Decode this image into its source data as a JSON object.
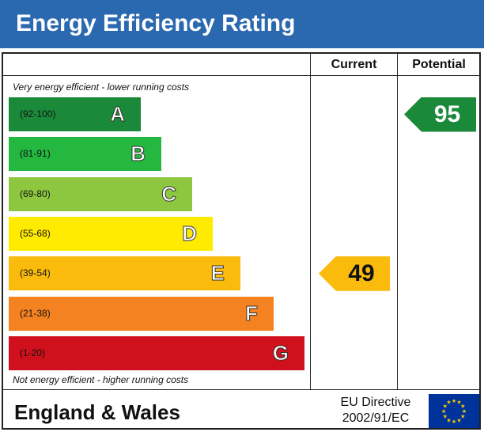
{
  "header": {
    "title": "Energy Efficiency Rating"
  },
  "columns": {
    "current": "Current",
    "potential": "Potential"
  },
  "notes": {
    "top": "Very energy efficient - lower running costs",
    "bottom": "Not energy efficient - higher running costs"
  },
  "chart_data": {
    "type": "bar",
    "title": "Energy Efficiency Rating",
    "categories": [
      "A",
      "B",
      "C",
      "D",
      "E",
      "F",
      "G"
    ],
    "ranges": [
      "(92-100)",
      "(81-91)",
      "(69-80)",
      "(55-68)",
      "(39-54)",
      "(21-38)",
      "(1-20)"
    ],
    "bands": [
      {
        "letter": "A",
        "range": "(92-100)",
        "min": 92,
        "max": 100,
        "color": "#1a8a3a"
      },
      {
        "letter": "B",
        "range": "(81-91)",
        "min": 81,
        "max": 91,
        "color": "#25b840"
      },
      {
        "letter": "C",
        "range": "(69-80)",
        "min": 69,
        "max": 80,
        "color": "#8dc63f"
      },
      {
        "letter": "D",
        "range": "(55-68)",
        "min": 55,
        "max": 68,
        "color": "#ffeb00"
      },
      {
        "letter": "E",
        "range": "(39-54)",
        "min": 39,
        "max": 54,
        "color": "#fbbb0c"
      },
      {
        "letter": "F",
        "range": "(21-38)",
        "min": 21,
        "max": 38,
        "color": "#f58220"
      },
      {
        "letter": "G",
        "range": "(1-20)",
        "min": 1,
        "max": 20,
        "color": "#d0101c"
      }
    ],
    "current": {
      "value": 49,
      "band": "E",
      "color": "#fbbb0c"
    },
    "potential": {
      "value": 95,
      "band": "A",
      "color": "#1a8a3a"
    }
  },
  "footer": {
    "region": "England & Wales",
    "directive_line1": "EU Directive",
    "directive_line2": "2002/91/EC"
  }
}
